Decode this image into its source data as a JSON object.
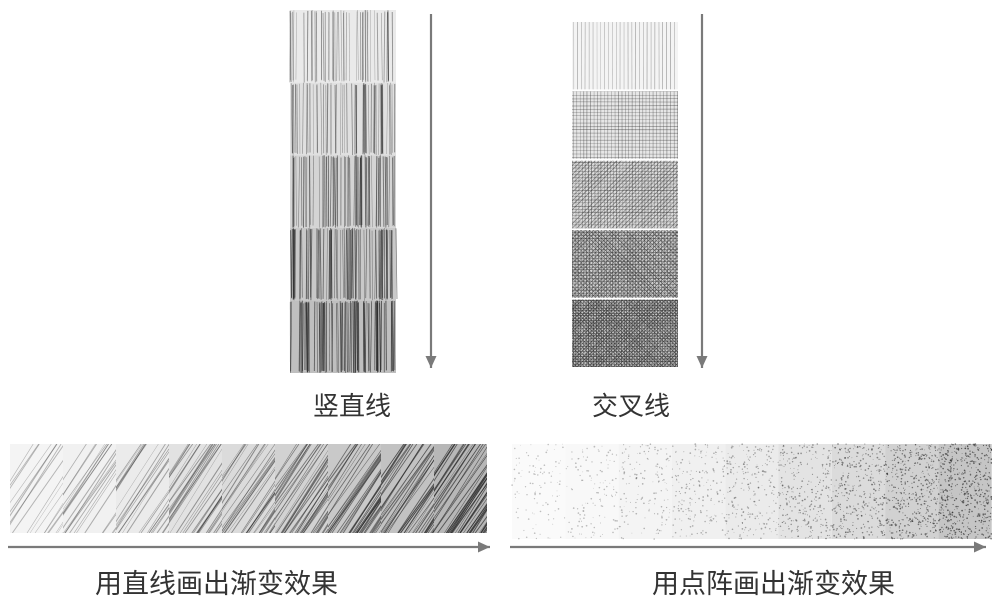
{
  "labels": {
    "vertical_lines": "竖直线",
    "cross_lines": "交叉线",
    "straight_line_gradient": "用直线画出渐变效果",
    "dot_matrix_gradient": "用点阵画出渐变效果"
  },
  "colors": {
    "arrow": "#7a7a7a",
    "ink": "#2e2e2e"
  },
  "vertical_lines_levels": [
    0.25,
    0.38,
    0.52,
    0.65,
    0.78
  ],
  "cross_lines_levels": [
    0.15,
    0.33,
    0.48,
    0.6,
    0.75
  ],
  "straight_line_levels": [
    0.12,
    0.16,
    0.22,
    0.32,
    0.4,
    0.5,
    0.6,
    0.68,
    0.8
  ],
  "dot_matrix_levels": [
    0.06,
    0.09,
    0.13,
    0.18,
    0.24,
    0.34,
    0.44,
    0.56,
    0.7
  ]
}
